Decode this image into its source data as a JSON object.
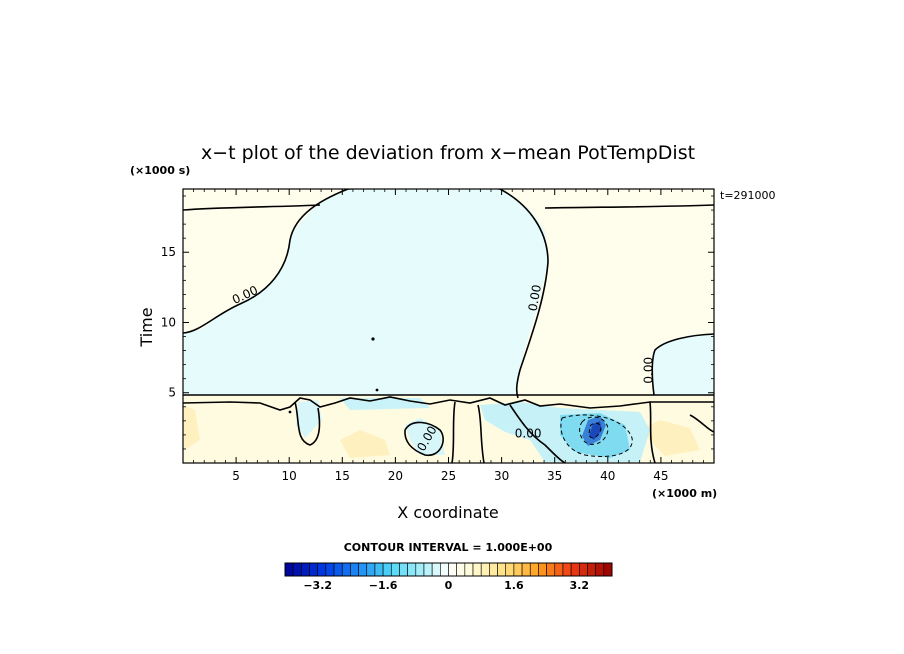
{
  "chart_data": {
    "type": "heatmap",
    "title": "x−t plot of the deviation from x−mean PotTempDist",
    "xlabel": "X coordinate",
    "ylabel": "Time",
    "x_unit": "(×1000 m)",
    "y_unit": "(×1000 s)",
    "time_stamp": "t=291000",
    "xlim": [
      0,
      50
    ],
    "ylim": [
      0,
      19.5
    ],
    "x_ticks": [
      5,
      10,
      15,
      20,
      25,
      30,
      35,
      40,
      45
    ],
    "y_ticks": [
      5,
      10,
      15
    ],
    "contour_labels": [
      {
        "text": "0.00",
        "x": 6,
        "y": 11.7,
        "angle": -25
      },
      {
        "text": "0.00",
        "x": 33.5,
        "y": 11.7,
        "angle": -80
      },
      {
        "text": "0.00",
        "x": 44.2,
        "y": 6.6,
        "angle": -90
      },
      {
        "text": "0.00",
        "x": 32.5,
        "y": 1.8,
        "angle": 0
      },
      {
        "text": "0.00",
        "x": 23.3,
        "y": 1.6,
        "angle": -60
      }
    ],
    "contour_interval": "CONTOUR INTERVAL = 1.000E+00",
    "colorbar": {
      "min": -4.0,
      "max": 4.0,
      "step": 0.2,
      "tick_labels": [
        "−3.2",
        "−1.6",
        "0",
        "1.6",
        "3.2"
      ],
      "tick_values": [
        -3.2,
        -1.6,
        0,
        1.6,
        3.2
      ]
    },
    "regions": [
      {
        "name": "upper-left",
        "value": 0.05,
        "color": "#fffdec"
      },
      {
        "name": "upper-central",
        "value": -0.05,
        "color": "#e6fbfc"
      },
      {
        "name": "upper-right",
        "value": 0.05,
        "color": "#fffdec"
      },
      {
        "name": "right-pocket",
        "value": -0.05,
        "color": "#e6fbfc"
      },
      {
        "name": "lower-band",
        "value": 0.2,
        "color": "#fffbe0"
      },
      {
        "name": "negative-core",
        "value": -2.4,
        "color": "#3a7fd6"
      }
    ]
  }
}
